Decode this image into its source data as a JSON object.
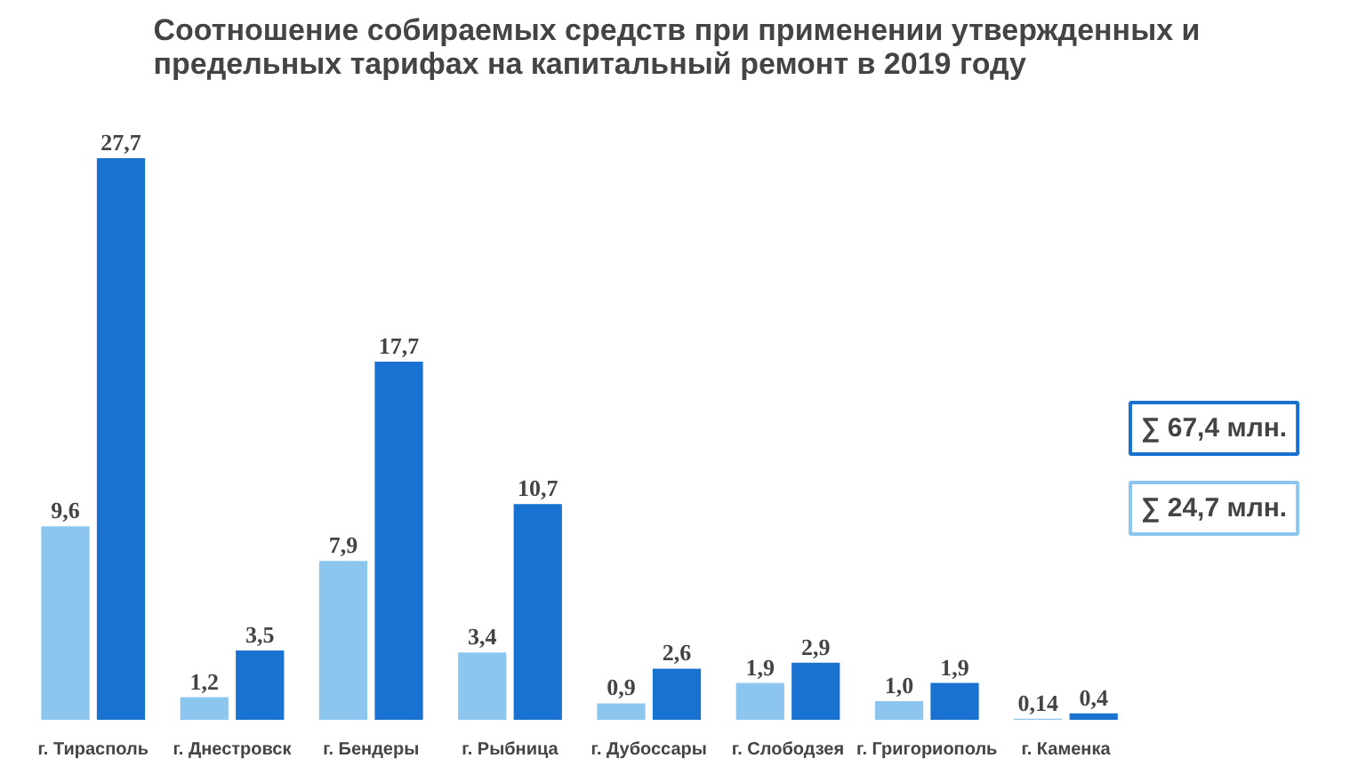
{
  "chart_data": {
    "type": "bar",
    "title": "Соотношение собираемых средств при применении утвержденных и\nпредельных тарифах на капитальный ремонт в 2019 году",
    "categories": [
      "г. Тирасполь",
      "г. Днестровск",
      "г. Бендеры",
      "г. Рыбница",
      "г. Дубоссары",
      "г. Слободзея",
      "г. Григориополь",
      "г. Каменка"
    ],
    "series": [
      {
        "color": "#8cc6ee",
        "values": [
          9.6,
          1.2,
          7.9,
          3.4,
          0.9,
          1.9,
          1.0,
          0.14
        ],
        "value_labels": [
          "9,6",
          "1,2",
          "7,9",
          "3,4",
          "0,9",
          "1,9",
          "1,0",
          "0,14"
        ]
      },
      {
        "color": "#1a72d0",
        "values": [
          27.7,
          3.5,
          17.7,
          10.7,
          2.6,
          2.9,
          1.9,
          0.4
        ],
        "value_labels": [
          "27,7",
          "3,5",
          "17,7",
          "10,7",
          "2,6",
          "2,9",
          "1,9",
          "0,4"
        ]
      }
    ],
    "annotations": [
      "∑ 67,4 млн.",
      "∑ 24,7 млн."
    ],
    "grid": false
  }
}
